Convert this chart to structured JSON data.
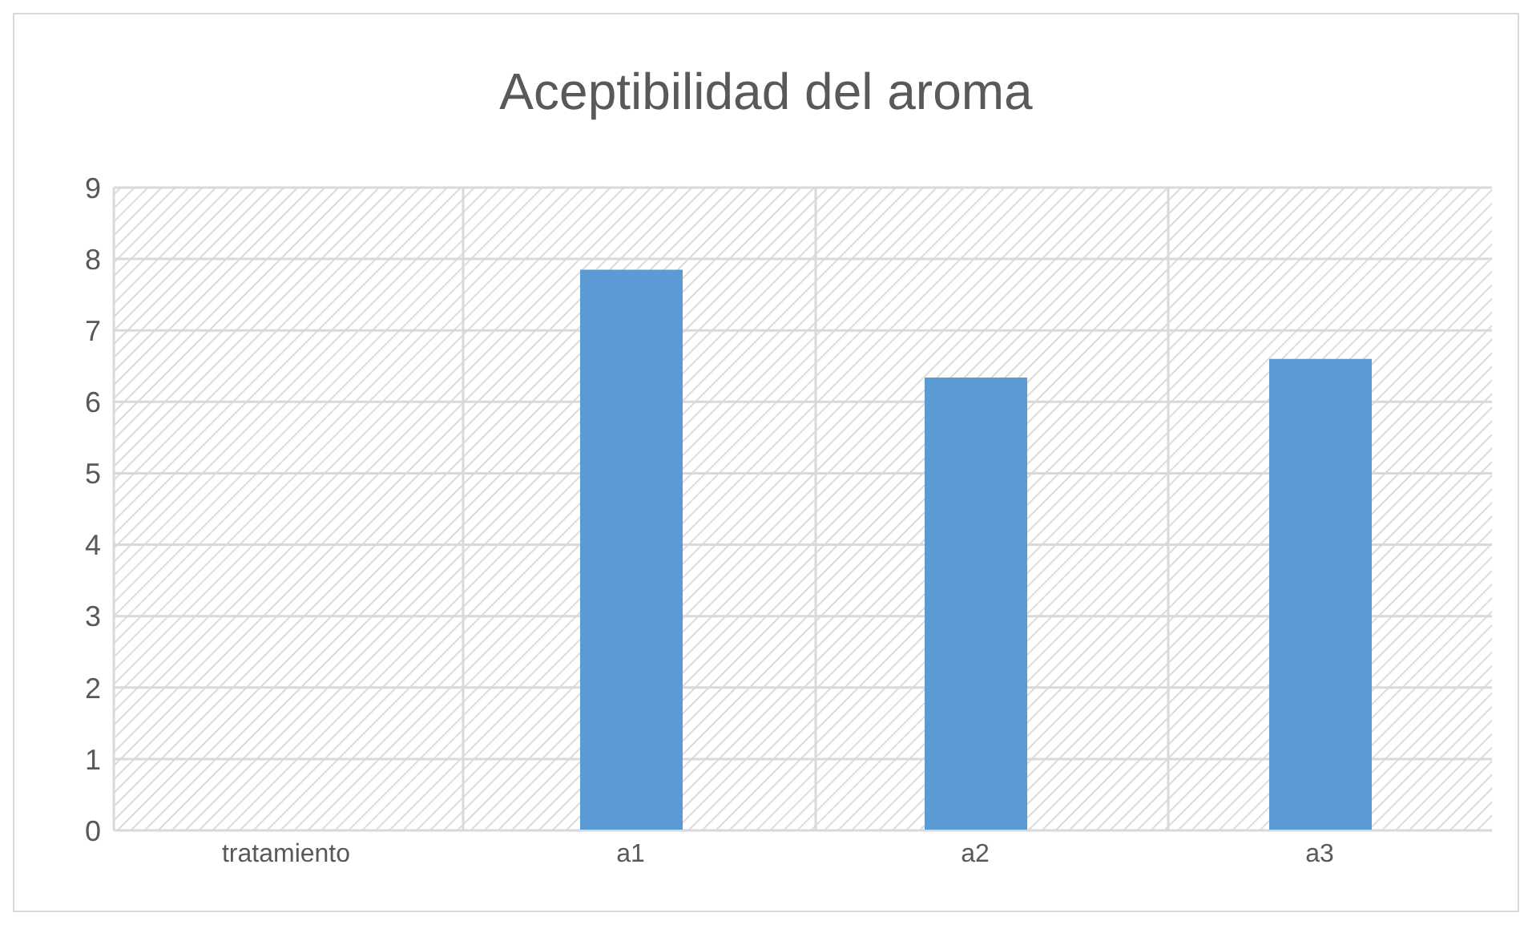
{
  "chart_data": {
    "type": "bar",
    "title": "Aceptibilidad del aroma",
    "categories": [
      "tratamiento",
      "a1",
      "a2",
      "a3"
    ],
    "values": [
      null,
      7.85,
      6.34,
      6.6
    ],
    "color": "#5b9bd5",
    "ylim": [
      0,
      9
    ],
    "yticks": [
      0,
      1,
      2,
      3,
      4,
      5,
      6,
      7,
      8,
      9
    ],
    "grid": true
  }
}
